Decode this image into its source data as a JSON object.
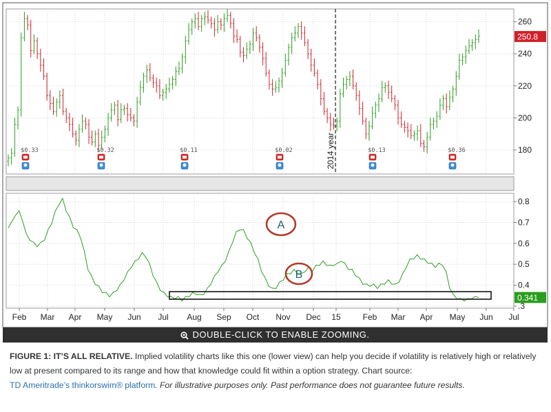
{
  "chart_data": [
    {
      "type": "candlestick",
      "title": "",
      "ylim": [
        165,
        268
      ],
      "y_ticks": [
        180,
        200,
        220,
        240,
        260
      ],
      "y_tick_labels": [
        "180",
        "200",
        "220",
        "240",
        "260"
      ],
      "last_value": 250.8,
      "last_value_label": "250.8",
      "up_color": "#2a9d1e",
      "down_color": "#d0212a",
      "annotation": "2014 year",
      "dividend_labels": [
        "$0.33",
        "$0.32",
        "$0.11",
        "$0.02",
        "$0.13",
        "$0.36"
      ],
      "close": [
        175,
        178,
        196,
        205,
        250,
        262,
        258,
        242,
        248,
        240,
        233,
        226,
        214,
        209,
        204,
        210,
        214,
        204,
        200,
        196,
        190,
        186,
        193,
        198,
        196,
        188,
        185,
        190,
        183,
        188,
        193,
        200,
        205,
        208,
        199,
        205,
        206,
        202,
        200,
        198,
        210,
        219,
        226,
        230,
        225,
        222,
        220,
        214,
        216,
        218,
        221,
        224,
        229,
        231,
        238,
        248,
        255,
        260,
        262,
        257,
        262,
        263,
        261,
        259,
        255,
        260,
        258,
        262,
        264,
        259,
        251,
        249,
        241,
        239,
        243,
        246,
        253,
        250,
        244,
        237,
        228,
        221,
        218,
        219,
        223,
        228,
        236,
        244,
        250,
        253,
        257,
        253,
        247,
        240,
        233,
        228,
        221,
        212,
        204,
        200,
        196,
        195,
        198,
        215,
        221,
        224,
        226,
        220,
        214,
        206,
        198,
        190,
        195,
        203,
        208,
        212,
        219,
        220,
        216,
        212,
        208,
        200,
        196,
        194,
        192,
        189,
        190,
        192,
        184,
        182,
        188,
        196,
        198,
        201,
        208,
        212,
        207,
        213,
        218,
        226,
        236,
        238,
        242,
        245,
        247,
        249,
        251
      ]
    },
    {
      "type": "line",
      "title": "",
      "series": [
        {
          "values": [
            0.68,
            0.7,
            0.74,
            0.75,
            0.71,
            0.64,
            0.62,
            0.6,
            0.59,
            0.6,
            0.62,
            0.66,
            0.7,
            0.75,
            0.79,
            0.81,
            0.76,
            0.72,
            0.68,
            0.66,
            0.63,
            0.56,
            0.48,
            0.44,
            0.41,
            0.39,
            0.37,
            0.36,
            0.35,
            0.36,
            0.38,
            0.4,
            0.43,
            0.46,
            0.49,
            0.51,
            0.53,
            0.55,
            0.54,
            0.5,
            0.45,
            0.41,
            0.38,
            0.36,
            0.35,
            0.34,
            0.34,
            0.34,
            0.33,
            0.34,
            0.35,
            0.36,
            0.36,
            0.35,
            0.36,
            0.38,
            0.41,
            0.44,
            0.47,
            0.49,
            0.52,
            0.56,
            0.61,
            0.65,
            0.67,
            0.66,
            0.63,
            0.6,
            0.56,
            0.52,
            0.47,
            0.43,
            0.4,
            0.38,
            0.39,
            0.41,
            0.43,
            0.45,
            0.46,
            0.47,
            0.46,
            0.45,
            0.47,
            0.48,
            0.47,
            0.49,
            0.5,
            0.51,
            0.5,
            0.49,
            0.5,
            0.5,
            0.52,
            0.5,
            0.48,
            0.47,
            0.45,
            0.43,
            0.41,
            0.4,
            0.4,
            0.4,
            0.39,
            0.4,
            0.41,
            0.42,
            0.41,
            0.4,
            0.42,
            0.45,
            0.49,
            0.52,
            0.53,
            0.54,
            0.53,
            0.52,
            0.51,
            0.5,
            0.49,
            0.5,
            0.5,
            0.46,
            0.39,
            0.35,
            0.34,
            0.33,
            0.33,
            0.33,
            0.34,
            0.34,
            0.341
          ]
        }
      ],
      "line_color": "#2a9d1e",
      "ylim": [
        0.29,
        0.84
      ],
      "y_ticks": [
        0.3,
        0.4,
        0.5,
        0.6,
        0.7,
        0.8
      ],
      "y_tick_labels": [
        ".3",
        "0.4",
        "0.5",
        "0.6",
        "0.7",
        "0.8"
      ],
      "last_value": 0.341,
      "last_value_label": "0.341",
      "annotations": [
        "A",
        "B"
      ]
    }
  ],
  "x_axis": {
    "months": [
      "Feb",
      "Mar",
      "Apr",
      "May",
      "Jun",
      "Jul",
      "Aug",
      "Sep",
      "Oct",
      "Nov",
      "Dec",
      "15",
      "Feb",
      "Mar",
      "Apr",
      "May",
      "Jun",
      "Jul"
    ]
  },
  "toolbar": {
    "zoom_label": "DOUBLE-CLICK TO ENABLE ZOOMING."
  },
  "caption": {
    "heading": "FIGURE 1: IT’S ALL RELATIVE.",
    "body": " Implied volatility charts like this one (lower view) can help you decide if volatility is relatively high or relatively low at present compared to its range and how that knowledge could fit within a option strategy. Chart source:",
    "link": "TD Ameritrade’s thinkorswim® platform",
    "note": ". For illustrative purposes only. Past performance does not guarantee future results."
  }
}
